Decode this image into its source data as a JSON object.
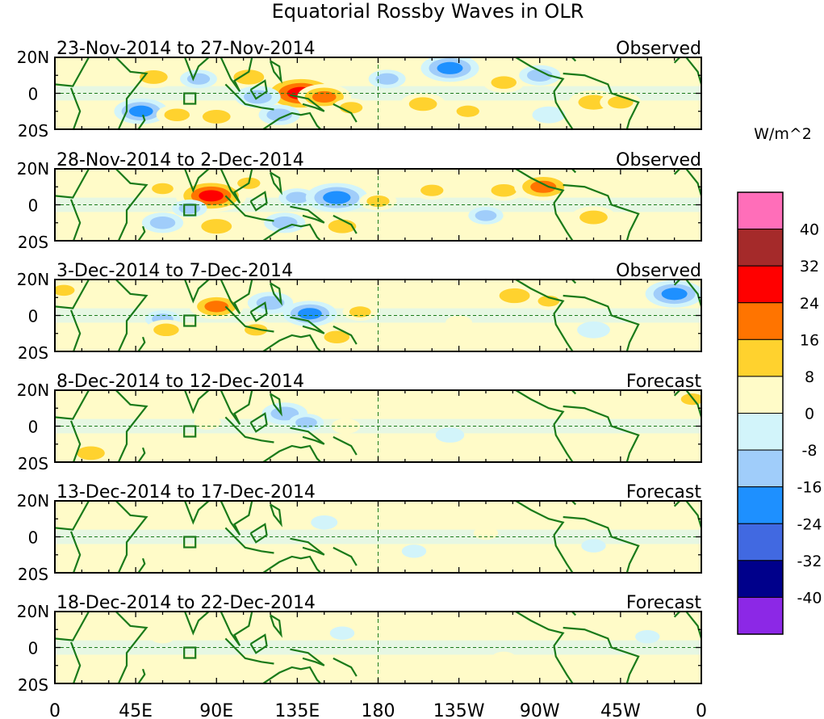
{
  "chart_data": {
    "type": "heatmap",
    "title": "Equatorial Rossby Waves in OLR",
    "units": "W/m^2",
    "x_tick_labels": [
      "0",
      "45E",
      "90E",
      "135E",
      "180",
      "135W",
      "90W",
      "45W",
      "0"
    ],
    "y_tick_labels": [
      "20N",
      "0",
      "20S"
    ],
    "colorbar": {
      "levels": [
        40,
        32,
        24,
        16,
        8,
        0,
        -8,
        -16,
        -24,
        -32,
        -40
      ],
      "colors": [
        "#ff6eb9",
        "#a52a2a",
        "#ff0000",
        "#ff7400",
        "#ffd22e",
        "#fffbc8",
        "#d2f4fa",
        "#a0cdfa",
        "#1e90ff",
        "#4169e1",
        "#00008b",
        "#8c28e6"
      ]
    },
    "panels": [
      {
        "period": "23-Nov-2014 to 27-Nov-2014",
        "type_label": "Observed",
        "anomalies": [
          {
            "lon": 55,
            "lat": 9,
            "value": 14
          },
          {
            "lon": 80,
            "lat": 8,
            "value": -10
          },
          {
            "lon": 108,
            "lat": 9,
            "value": 16
          },
          {
            "lon": 137,
            "lat": 0,
            "value": 30
          },
          {
            "lon": 150,
            "lat": -2,
            "value": 18
          },
          {
            "lon": 165,
            "lat": -8,
            "value": 10
          },
          {
            "lon": 185,
            "lat": 8,
            "value": -10
          },
          {
            "lon": 220,
            "lat": 14,
            "value": -20
          },
          {
            "lon": 250,
            "lat": 6,
            "value": 12
          },
          {
            "lon": 270,
            "lat": 10,
            "value": -12
          },
          {
            "lon": 300,
            "lat": -5,
            "value": 16
          },
          {
            "lon": 315,
            "lat": -5,
            "value": 12
          },
          {
            "lon": 48,
            "lat": -10,
            "value": -18
          },
          {
            "lon": 68,
            "lat": -12,
            "value": 12
          },
          {
            "lon": 90,
            "lat": -13,
            "value": 14
          },
          {
            "lon": 113,
            "lat": -2,
            "value": -14
          },
          {
            "lon": 125,
            "lat": -12,
            "value": -12
          },
          {
            "lon": 205,
            "lat": -6,
            "value": 14
          },
          {
            "lon": 230,
            "lat": -10,
            "value": 10
          },
          {
            "lon": 275,
            "lat": -12,
            "value": -8
          }
        ]
      },
      {
        "period": "28-Nov-2014 to 2-Dec-2014",
        "type_label": "Observed",
        "anomalies": [
          {
            "lon": 60,
            "lat": 9,
            "value": 9
          },
          {
            "lon": 87,
            "lat": 5,
            "value": 26
          },
          {
            "lon": 75,
            "lat": -2,
            "value": -9
          },
          {
            "lon": 90,
            "lat": -12,
            "value": 16
          },
          {
            "lon": 108,
            "lat": 12,
            "value": 10
          },
          {
            "lon": 135,
            "lat": 4,
            "value": -10
          },
          {
            "lon": 157,
            "lat": 4,
            "value": -22
          },
          {
            "lon": 180,
            "lat": 2,
            "value": 10
          },
          {
            "lon": 210,
            "lat": 8,
            "value": 10
          },
          {
            "lon": 250,
            "lat": 8,
            "value": 12
          },
          {
            "lon": 272,
            "lat": 10,
            "value": 20
          },
          {
            "lon": 300,
            "lat": -7,
            "value": 14
          },
          {
            "lon": 240,
            "lat": -6,
            "value": -9
          },
          {
            "lon": 160,
            "lat": -12,
            "value": 14
          },
          {
            "lon": 128,
            "lat": -10,
            "value": -12
          },
          {
            "lon": 60,
            "lat": -10,
            "value": -12
          }
        ]
      },
      {
        "period": "3-Dec-2014 to 7-Dec-2014",
        "type_label": "Observed",
        "anomalies": [
          {
            "lon": 5,
            "lat": 14,
            "value": 9
          },
          {
            "lon": 90,
            "lat": 5,
            "value": 18
          },
          {
            "lon": 60,
            "lat": -2,
            "value": -9
          },
          {
            "lon": 62,
            "lat": -8,
            "value": 12
          },
          {
            "lon": 120,
            "lat": 7,
            "value": -14
          },
          {
            "lon": 142,
            "lat": 1,
            "value": -18
          },
          {
            "lon": 112,
            "lat": -8,
            "value": 10
          },
          {
            "lon": 157,
            "lat": -12,
            "value": 12
          },
          {
            "lon": 170,
            "lat": 2,
            "value": 9
          },
          {
            "lon": 256,
            "lat": 11,
            "value": 16
          },
          {
            "lon": 275,
            "lat": 8,
            "value": 9
          },
          {
            "lon": 345,
            "lat": 12,
            "value": -20
          },
          {
            "lon": 300,
            "lat": -8,
            "value": -8
          },
          {
            "lon": 225,
            "lat": -4,
            "value": 5
          }
        ]
      },
      {
        "period": "8-Dec-2014 to 12-Dec-2014",
        "type_label": "Forecast",
        "anomalies": [
          {
            "lon": 20,
            "lat": -15,
            "value": 14
          },
          {
            "lon": 128,
            "lat": 7,
            "value": -14
          },
          {
            "lon": 140,
            "lat": 2,
            "value": -9
          },
          {
            "lon": 162,
            "lat": 0,
            "value": 6
          },
          {
            "lon": 220,
            "lat": -5,
            "value": -6
          },
          {
            "lon": 355,
            "lat": 15,
            "value": 10
          },
          {
            "lon": 85,
            "lat": 2,
            "value": 5
          },
          {
            "lon": 280,
            "lat": 8,
            "value": 4
          }
        ]
      },
      {
        "period": "13-Dec-2014 to 17-Dec-2014",
        "type_label": "Forecast",
        "anomalies": [
          {
            "lon": 50,
            "lat": 8,
            "value": 4
          },
          {
            "lon": 150,
            "lat": 8,
            "value": -5
          },
          {
            "lon": 240,
            "lat": 2,
            "value": 4
          },
          {
            "lon": 200,
            "lat": -8,
            "value": -4
          },
          {
            "lon": 300,
            "lat": -5,
            "value": -4
          }
        ]
      },
      {
        "period": "18-Dec-2014 to 22-Dec-2014",
        "type_label": "Forecast",
        "anomalies": [
          {
            "lon": 60,
            "lat": 6,
            "value": 4
          },
          {
            "lon": 160,
            "lat": 8,
            "value": -4
          },
          {
            "lon": 250,
            "lat": -6,
            "value": 4
          },
          {
            "lon": 330,
            "lat": 6,
            "value": -4
          }
        ]
      }
    ]
  }
}
